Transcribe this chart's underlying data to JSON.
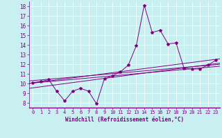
{
  "xlabel": "Windchill (Refroidissement éolien,°C)",
  "bg_color": "#c8f0f0",
  "line_color": "#800080",
  "grid_color": "#b0dede",
  "main_y": [
    10.1,
    10.2,
    10.4,
    9.2,
    8.2,
    9.2,
    9.5,
    9.2,
    7.9,
    10.5,
    10.8,
    11.2,
    11.9,
    13.9,
    18.1,
    15.3,
    15.5,
    14.1,
    14.2,
    11.6,
    11.5,
    11.5,
    11.9,
    12.4
  ],
  "trend_lines": [
    [
      10.05,
      12.5
    ],
    [
      10.05,
      11.75
    ],
    [
      10.3,
      11.95
    ],
    [
      9.55,
      12.05
    ]
  ],
  "xlim": [
    -0.5,
    23.5
  ],
  "ylim": [
    7.5,
    18.5
  ],
  "yticks": [
    8,
    9,
    10,
    11,
    12,
    13,
    14,
    15,
    16,
    17,
    18
  ],
  "xticks": [
    0,
    1,
    2,
    3,
    4,
    5,
    6,
    7,
    8,
    9,
    10,
    11,
    12,
    13,
    14,
    15,
    16,
    17,
    18,
    19,
    20,
    21,
    22,
    23
  ],
  "tick_fontsize": 5.0,
  "xlabel_fontsize": 5.5,
  "linewidth": 0.7,
  "markersize": 3.0
}
